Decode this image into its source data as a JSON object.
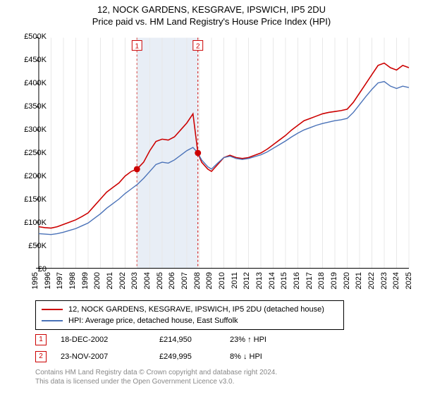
{
  "title": "12, NOCK GARDENS, KESGRAVE, IPSWICH, IP5 2DU",
  "subtitle": "Price paid vs. HM Land Registry's House Price Index (HPI)",
  "chart": {
    "type": "line",
    "x_start_year": 1995,
    "x_end_year": 2025,
    "xtick_years": [
      1995,
      1996,
      1997,
      1998,
      1999,
      2000,
      2001,
      2002,
      2003,
      2004,
      2005,
      2006,
      2007,
      2008,
      2009,
      2010,
      2011,
      2012,
      2013,
      2014,
      2015,
      2016,
      2017,
      2018,
      2019,
      2020,
      2021,
      2022,
      2023,
      2024,
      2025
    ],
    "ylim": [
      0,
      500000
    ],
    "ytick_step": 50000,
    "ytick_labels": [
      "£0",
      "£50K",
      "£100K",
      "£150K",
      "£200K",
      "£250K",
      "£300K",
      "£350K",
      "£400K",
      "£450K",
      "£500K"
    ],
    "background_color": "#ffffff",
    "axis_color": "#000000",
    "grid_x_color": "#e8e8e8",
    "shade_color": "#e8eef6",
    "shade_from": 2002.96,
    "shade_to": 2007.9,
    "series": [
      {
        "name": "12, NOCK GARDENS, KESGRAVE, IPSWICH, IP5 2DU (detached house)",
        "color": "#cc0000",
        "width": 1.6,
        "data": [
          [
            1995.0,
            90000
          ],
          [
            1995.5,
            88000
          ],
          [
            1996.0,
            87000
          ],
          [
            1996.5,
            90000
          ],
          [
            1997.0,
            95000
          ],
          [
            1997.5,
            100000
          ],
          [
            1998.0,
            105000
          ],
          [
            1998.5,
            112000
          ],
          [
            1999.0,
            120000
          ],
          [
            1999.5,
            135000
          ],
          [
            2000.0,
            150000
          ],
          [
            2000.5,
            165000
          ],
          [
            2001.0,
            175000
          ],
          [
            2001.5,
            185000
          ],
          [
            2002.0,
            200000
          ],
          [
            2002.5,
            210000
          ],
          [
            2002.96,
            214950
          ],
          [
            2003.5,
            230000
          ],
          [
            2004.0,
            255000
          ],
          [
            2004.5,
            275000
          ],
          [
            2005.0,
            280000
          ],
          [
            2005.5,
            278000
          ],
          [
            2006.0,
            285000
          ],
          [
            2006.5,
            300000
          ],
          [
            2007.0,
            315000
          ],
          [
            2007.5,
            335000
          ],
          [
            2007.9,
            249995
          ],
          [
            2008.2,
            230000
          ],
          [
            2008.7,
            215000
          ],
          [
            2009.0,
            210000
          ],
          [
            2009.5,
            225000
          ],
          [
            2010.0,
            240000
          ],
          [
            2010.5,
            245000
          ],
          [
            2011.0,
            240000
          ],
          [
            2011.5,
            238000
          ],
          [
            2012.0,
            240000
          ],
          [
            2012.5,
            245000
          ],
          [
            2013.0,
            250000
          ],
          [
            2013.5,
            258000
          ],
          [
            2014.0,
            268000
          ],
          [
            2014.5,
            278000
          ],
          [
            2015.0,
            288000
          ],
          [
            2015.5,
            300000
          ],
          [
            2016.0,
            310000
          ],
          [
            2016.5,
            320000
          ],
          [
            2017.0,
            325000
          ],
          [
            2017.5,
            330000
          ],
          [
            2018.0,
            335000
          ],
          [
            2018.5,
            338000
          ],
          [
            2019.0,
            340000
          ],
          [
            2019.5,
            342000
          ],
          [
            2020.0,
            345000
          ],
          [
            2020.5,
            360000
          ],
          [
            2021.0,
            380000
          ],
          [
            2021.5,
            400000
          ],
          [
            2022.0,
            420000
          ],
          [
            2022.5,
            440000
          ],
          [
            2023.0,
            445000
          ],
          [
            2023.5,
            435000
          ],
          [
            2024.0,
            430000
          ],
          [
            2024.5,
            440000
          ],
          [
            2025.0,
            435000
          ]
        ]
      },
      {
        "name": "HPI: Average price, detached house, East Suffolk",
        "color": "#4a72b8",
        "width": 1.4,
        "data": [
          [
            1995.0,
            75000
          ],
          [
            1995.5,
            74000
          ],
          [
            1996.0,
            73000
          ],
          [
            1996.5,
            75000
          ],
          [
            1997.0,
            78000
          ],
          [
            1997.5,
            82000
          ],
          [
            1998.0,
            86000
          ],
          [
            1998.5,
            92000
          ],
          [
            1999.0,
            98000
          ],
          [
            1999.5,
            108000
          ],
          [
            2000.0,
            118000
          ],
          [
            2000.5,
            130000
          ],
          [
            2001.0,
            140000
          ],
          [
            2001.5,
            150000
          ],
          [
            2002.0,
            162000
          ],
          [
            2002.5,
            172000
          ],
          [
            2003.0,
            182000
          ],
          [
            2003.5,
            195000
          ],
          [
            2004.0,
            210000
          ],
          [
            2004.5,
            225000
          ],
          [
            2005.0,
            230000
          ],
          [
            2005.5,
            228000
          ],
          [
            2006.0,
            235000
          ],
          [
            2006.5,
            245000
          ],
          [
            2007.0,
            255000
          ],
          [
            2007.5,
            262000
          ],
          [
            2007.9,
            250000
          ],
          [
            2008.2,
            235000
          ],
          [
            2008.7,
            220000
          ],
          [
            2009.0,
            215000
          ],
          [
            2009.5,
            228000
          ],
          [
            2010.0,
            240000
          ],
          [
            2010.5,
            243000
          ],
          [
            2011.0,
            238000
          ],
          [
            2011.5,
            236000
          ],
          [
            2012.0,
            238000
          ],
          [
            2012.5,
            242000
          ],
          [
            2013.0,
            246000
          ],
          [
            2013.5,
            252000
          ],
          [
            2014.0,
            260000
          ],
          [
            2014.5,
            268000
          ],
          [
            2015.0,
            276000
          ],
          [
            2015.5,
            285000
          ],
          [
            2016.0,
            293000
          ],
          [
            2016.5,
            300000
          ],
          [
            2017.0,
            305000
          ],
          [
            2017.5,
            310000
          ],
          [
            2018.0,
            314000
          ],
          [
            2018.5,
            317000
          ],
          [
            2019.0,
            320000
          ],
          [
            2019.5,
            322000
          ],
          [
            2020.0,
            325000
          ],
          [
            2020.5,
            338000
          ],
          [
            2021.0,
            355000
          ],
          [
            2021.5,
            372000
          ],
          [
            2022.0,
            388000
          ],
          [
            2022.5,
            402000
          ],
          [
            2023.0,
            405000
          ],
          [
            2023.5,
            395000
          ],
          [
            2024.0,
            390000
          ],
          [
            2024.5,
            395000
          ],
          [
            2025.0,
            392000
          ]
        ]
      }
    ],
    "markers": [
      {
        "n": "1",
        "x": 2002.96,
        "y": 214950,
        "color": "#cc0000"
      },
      {
        "n": "2",
        "x": 2007.9,
        "y": 249995,
        "color": "#cc0000"
      }
    ]
  },
  "marker_table": [
    {
      "n": "1",
      "date": "18-DEC-2002",
      "price": "£214,950",
      "pct": "23% ↑ HPI"
    },
    {
      "n": "2",
      "date": "23-NOV-2007",
      "price": "£249,995",
      "pct": "8% ↓ HPI"
    }
  ],
  "footer": {
    "line1": "Contains HM Land Registry data © Crown copyright and database right 2024.",
    "line2": "This data is licensed under the Open Government Licence v3.0."
  }
}
